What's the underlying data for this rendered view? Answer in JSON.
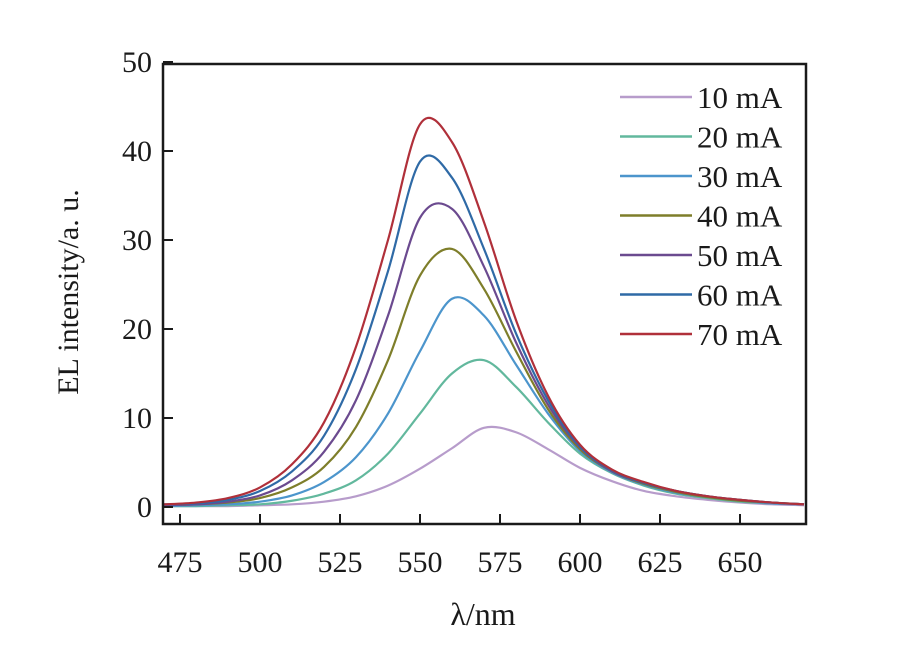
{
  "chart_data": {
    "type": "line",
    "title": "",
    "xlabel": "λ/nm",
    "ylabel": "EL intensity/a. u.",
    "xlim": [
      470,
      670
    ],
    "ylim": [
      -2,
      50
    ],
    "xticks": [
      475,
      500,
      525,
      550,
      575,
      600,
      625,
      650
    ],
    "yticks": [
      0,
      10,
      20,
      30,
      40,
      50
    ],
    "legend_position": "top-right",
    "x": [
      470,
      480,
      490,
      500,
      510,
      520,
      530,
      540,
      550,
      560,
      570,
      580,
      590,
      600,
      610,
      620,
      630,
      640,
      650,
      660,
      670
    ],
    "series": [
      {
        "name": "10 mA",
        "color": "#b79ccb",
        "values": [
          0.1,
          0.1,
          0.1,
          0.2,
          0.3,
          0.6,
          1.2,
          2.4,
          4.3,
          6.6,
          8.9,
          8.4,
          6.5,
          4.4,
          2.9,
          1.8,
          1.2,
          0.8,
          0.5,
          0.3,
          0.2
        ]
      },
      {
        "name": "20 mA",
        "color": "#62b89d",
        "values": [
          0.1,
          0.1,
          0.2,
          0.3,
          0.7,
          1.5,
          3,
          6,
          10.5,
          15,
          16.5,
          13.5,
          9.5,
          6,
          3.8,
          2.4,
          1.5,
          1,
          0.6,
          0.4,
          0.3
        ]
      },
      {
        "name": "30 mA",
        "color": "#4c95cc",
        "values": [
          0.1,
          0.2,
          0.3,
          0.6,
          1.3,
          2.8,
          5.6,
          10.5,
          17.5,
          23.4,
          21.5,
          16,
          10.5,
          6.3,
          3.9,
          2.5,
          1.6,
          1.1,
          0.7,
          0.4,
          0.3
        ]
      },
      {
        "name": "40 mA",
        "color": "#7e7e2a",
        "values": [
          0.2,
          0.3,
          0.5,
          1,
          2.2,
          4.5,
          9,
          16.5,
          26,
          29,
          24.5,
          17.5,
          11,
          6.5,
          4,
          2.6,
          1.7,
          1.1,
          0.7,
          0.5,
          0.3
        ]
      },
      {
        "name": "50 mA",
        "color": "#6b4a8f",
        "values": [
          0.2,
          0.3,
          0.6,
          1.3,
          3,
          6.2,
          12,
          21.5,
          32.5,
          33.5,
          27,
          18.5,
          11.5,
          6.7,
          4,
          2.7,
          1.8,
          1.2,
          0.8,
          0.5,
          0.3
        ]
      },
      {
        "name": "60 mA",
        "color": "#2f6aa6",
        "values": [
          0.3,
          0.4,
          0.8,
          1.8,
          4,
          8,
          15.5,
          26.5,
          38.8,
          37,
          29,
          19.5,
          12,
          6.8,
          4.1,
          2.7,
          1.8,
          1.2,
          0.8,
          0.5,
          0.3
        ]
      },
      {
        "name": "70 mA",
        "color": "#b0303a",
        "values": [
          0.3,
          0.5,
          1,
          2.2,
          4.8,
          9.5,
          18,
          30,
          43,
          41,
          32,
          21,
          12.5,
          7,
          4.2,
          2.8,
          1.8,
          1.2,
          0.8,
          0.5,
          0.3
        ]
      }
    ]
  }
}
